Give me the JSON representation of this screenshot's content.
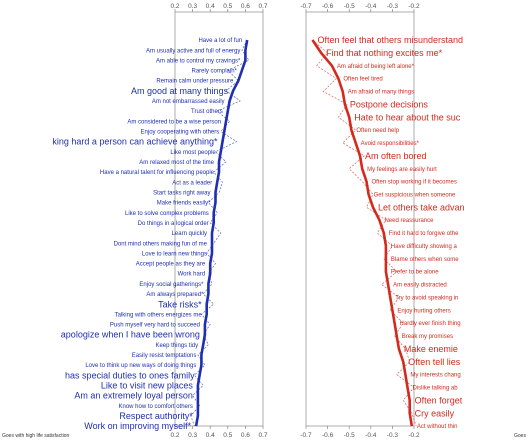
{
  "chart_data": [
    {
      "type": "line",
      "panel": "left",
      "xlim": [
        0.2,
        0.7
      ],
      "xticks": [
        "0.2",
        "0.3",
        "0.4",
        "0.5",
        "0.6",
        "0.7"
      ],
      "caption": "Goes with high life satisfaction",
      "color": "#1f2fb0",
      "labels": [
        "Have a lot of fun",
        "Am usually active and full of energy",
        "Am able to control my cravings*",
        "Rarely complain*",
        "Remain calm under pressure",
        "Am good at many things",
        "Am not embarrassed easily",
        "Trust others",
        "Am considered to be a wise person",
        "Enjoy cooperating with others",
        "king hard a person can achieve anything*",
        "Like most people",
        "Am relaxed most of the time",
        "Have a natural talent for influencing people",
        "Act as a leader",
        "Start tasks right away",
        "Make friends easily*",
        "Like to solve complex problems",
        "Do things in a logical order",
        "Learn quickly",
        "Dont mind others making fun of me",
        "Love to learn new things",
        "Accept people as they are",
        "Work hard",
        "Enjoy social gatherings*",
        "Am always prepared*",
        "Take risks*",
        "Talking with others energizes me",
        "Push myself very hard to succeed",
        "apologize when I have been wrong",
        "Keep things tidy",
        "Easily resist temptations",
        "Love to think up new ways of doing things",
        "has special duties to ones family",
        "Like to visit new places",
        "Am an extremely loyal person",
        "Know how to comfort others",
        "Respect authority*",
        "Work on improving myself*"
      ],
      "sizes": [
        6,
        6,
        6,
        6,
        6,
        9,
        6,
        6,
        6,
        6,
        9,
        6,
        6,
        6,
        6,
        6,
        6,
        6,
        6,
        6,
        6,
        6,
        6,
        6,
        6,
        6,
        9,
        6,
        6,
        9,
        6,
        6,
        6,
        9,
        9,
        9,
        6,
        9,
        9
      ],
      "values": [
        0.61,
        0.6,
        0.6,
        0.58,
        0.56,
        0.53,
        0.51,
        0.5,
        0.49,
        0.48,
        0.47,
        0.46,
        0.45,
        0.45,
        0.44,
        0.43,
        0.43,
        0.42,
        0.42,
        0.41,
        0.41,
        0.41,
        0.4,
        0.4,
        0.39,
        0.39,
        0.38,
        0.38,
        0.37,
        0.37,
        0.36,
        0.35,
        0.35,
        0.34,
        0.33,
        0.33,
        0.33,
        0.33,
        0.32
      ],
      "raw": [
        0.61,
        0.58,
        0.62,
        0.5,
        0.56,
        0.49,
        0.57,
        0.44,
        0.51,
        0.46,
        0.55,
        0.43,
        0.49,
        0.42,
        0.47,
        0.45,
        0.39,
        0.44,
        0.4,
        0.46,
        0.42,
        0.38,
        0.43,
        0.39,
        0.41,
        0.36,
        0.42,
        0.35,
        0.4,
        0.36,
        0.39,
        0.33,
        0.37,
        0.31,
        0.36,
        0.3,
        0.34,
        0.29,
        0.31
      ]
    },
    {
      "type": "line",
      "panel": "right",
      "xlim": [
        -0.7,
        -0.2
      ],
      "xticks": [
        "-0.7",
        "-0.6",
        "-0.5",
        "-0.4",
        "-0.3",
        "-0.2"
      ],
      "caption": "Goes",
      "color": "#d42a1e",
      "labels": [
        "Often feel that others misunderstand",
        "Find that nothing excites me*",
        "Am afraid of being left alone*",
        "Often feel tired",
        "Am afraid of many things",
        "Postpone decisions",
        "Hate to hear about the suc",
        "Often need help",
        "Avoid responsibilities*",
        "Am often bored",
        "My feelings are easily hurt",
        "Often stop working if it becomes",
        "Get suspicious when someone",
        "Let others take advan",
        "Need reassurance",
        "Find it hard to forgive othe",
        "Have difficulty showing a",
        "Blame others when some",
        "Prefer to be alone",
        "Am easily distracted",
        "Try to avoid speaking in",
        "Enjoy hurting others",
        "Hardly ever finish thing",
        "Break my promises",
        "Make enemie",
        "Often tell lies",
        "My interests chang",
        "Dislike talking ab",
        "Often forget",
        "Cry easily",
        "Act without thin"
      ],
      "sizes": [
        9,
        9,
        6,
        6,
        6,
        9,
        9,
        6,
        6,
        9,
        6,
        6,
        6,
        9,
        6,
        6,
        6,
        6,
        6,
        6,
        6,
        6,
        6,
        6,
        9,
        9,
        6,
        6,
        9,
        9,
        6
      ],
      "values": [
        -0.67,
        -0.63,
        -0.58,
        -0.55,
        -0.53,
        -0.52,
        -0.5,
        -0.49,
        -0.47,
        -0.45,
        -0.44,
        -0.42,
        -0.41,
        -0.39,
        -0.36,
        -0.34,
        -0.33,
        -0.33,
        -0.33,
        -0.32,
        -0.31,
        -0.3,
        -0.29,
        -0.28,
        -0.27,
        -0.25,
        -0.24,
        -0.23,
        -0.22,
        -0.22,
        -0.21
      ],
      "raw": [
        -0.67,
        -0.6,
        -0.65,
        -0.56,
        -0.62,
        -0.51,
        -0.55,
        -0.47,
        -0.53,
        -0.43,
        -0.5,
        -0.44,
        -0.39,
        -0.42,
        -0.33,
        -0.37,
        -0.3,
        -0.34,
        -0.28,
        -0.35,
        -0.27,
        -0.31,
        -0.25,
        -0.29,
        -0.24,
        -0.22,
        -0.28,
        -0.2,
        -0.25,
        -0.21,
        -0.19
      ]
    }
  ]
}
